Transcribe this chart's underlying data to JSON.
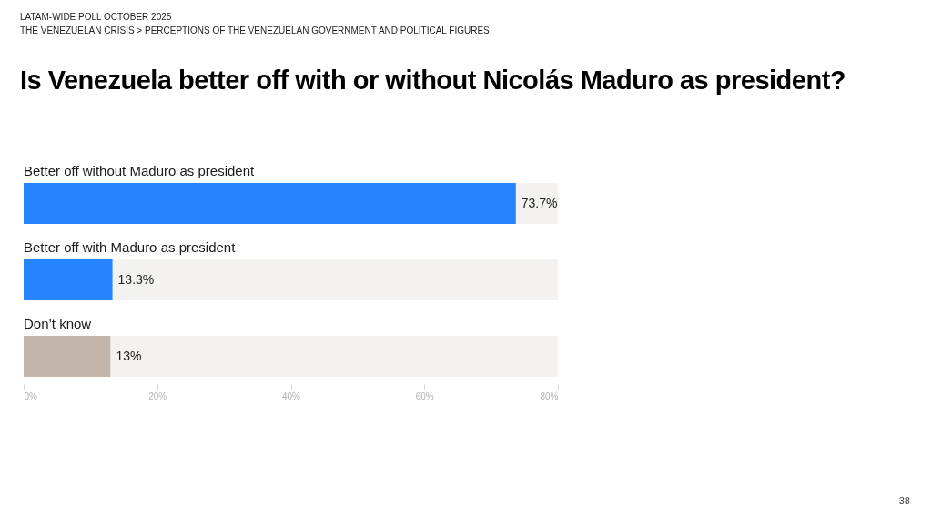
{
  "chart_data": {
    "type": "bar",
    "orientation": "horizontal",
    "title": "Is Venezuela better off with or without Nicolás Maduro as president?",
    "subtitle": "LATAM-WIDE POLL OCTOBER 2025",
    "annotations": [
      "THE VENEZUELAN CRISIS > PERCEPTIONS OF THE VENEZUELAN GOVERNMENT AND POLITICAL FIGURES",
      "38"
    ],
    "categories": [
      "Better off without Maduro as president",
      "Better off with Maduro as president",
      "Don’t know"
    ],
    "values": [
      73.7,
      13.3,
      13
    ],
    "colors": [
      "#2684ff",
      "#2684ff",
      "#c4b5ab"
    ],
    "value_labels": [
      "73.7%",
      "13.3%",
      "13%"
    ],
    "xlim": [
      0,
      80
    ],
    "xticks": [
      {
        "value": 0,
        "label": "0%"
      },
      {
        "value": 20,
        "label": "20%"
      },
      {
        "value": 40,
        "label": "40%"
      },
      {
        "value": 60,
        "label": "60%"
      },
      {
        "value": 80,
        "label": "80%"
      }
    ]
  }
}
